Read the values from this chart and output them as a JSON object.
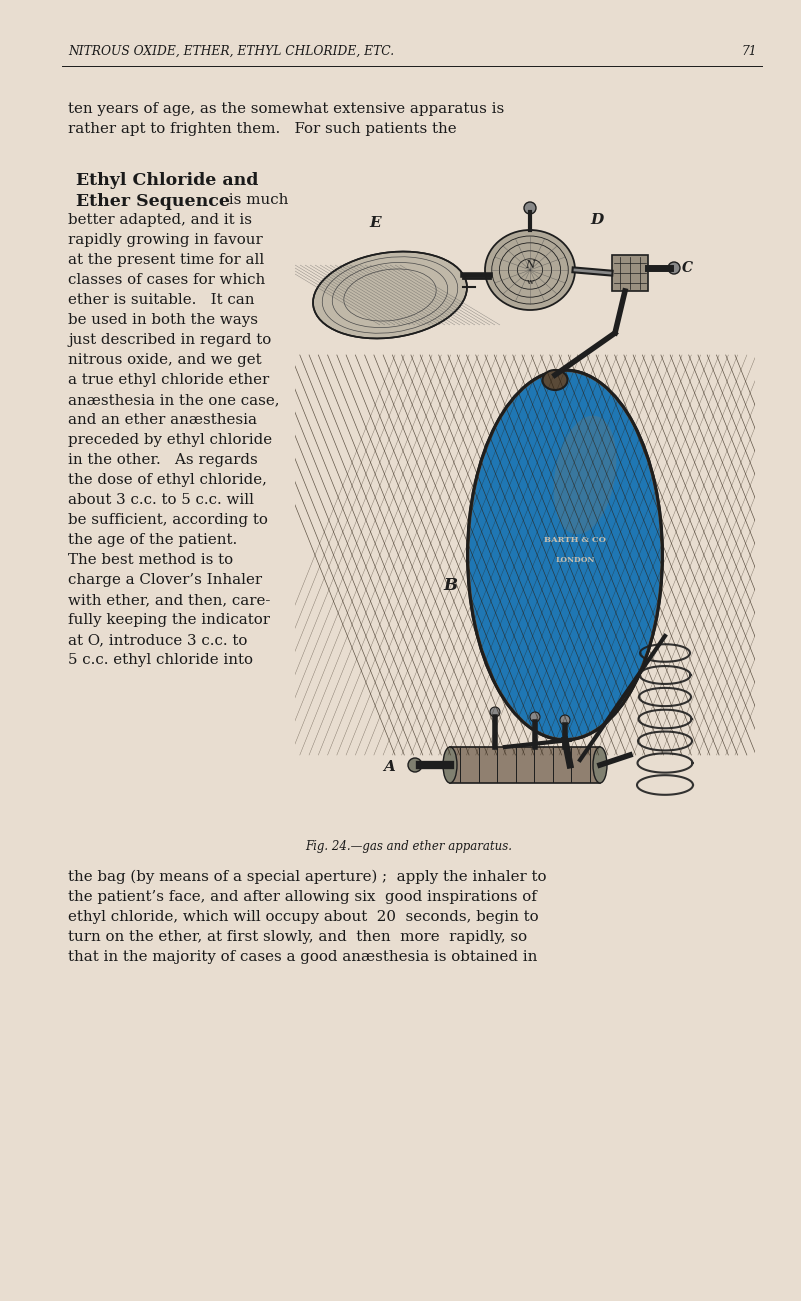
{
  "bg_color": "#e8ddd0",
  "text_color": "#1a1a1a",
  "page_width": 8.01,
  "page_height": 13.01,
  "header_text": "NITROUS OXIDE, ETHER, ETHYL CHLORIDE, ETC.",
  "header_page_num": "71",
  "header_fontsize": 9.0,
  "intro_lines": [
    "ten years of age, as the somewhat extensive apparatus is",
    "rather apt to frighten them.   For such patients the"
  ],
  "left_col_text_lines": [
    "better adapted, and it is",
    "rapidly growing in favour",
    "at the present time for all",
    "classes of cases for which",
    "ether is suitable.   It can",
    "be used in both the ways",
    "just described in regard to",
    "nitrous oxide, and we get",
    "a true ethyl chloride ether",
    "anæsthesia in the one case,",
    "and an ether anæsthesia",
    "preceded by ethyl chloride",
    "in the other.   As regards",
    "the dose of ethyl chloride,",
    "about 3 c.c. to 5 c.c. will",
    "be sufficient, according to",
    "the age of the patient.",
    "The best method is to",
    "charge a Clover’s Inhaler",
    "with ether, and then, care-",
    "fully keeping the indicator",
    "at O, introduce 3 c.c. to",
    "5 c.c. ethyl chloride into"
  ],
  "caption_text": "Fig. 24.—gas and ether apparatus.",
  "bottom_lines": [
    "the bag (by means of a special aperture) ;  apply the inhaler to",
    "the patient’s face, and after allowing six  good inspirations of",
    "ethyl chloride, which will occupy about  20  seconds, begin to",
    "turn on the ether, at first slowly, and  then  more  rapidly, so",
    "that in the majority of cases a good anæsthesia is obtained in"
  ],
  "body_fontsize": 10.8,
  "caption_fontsize": 8.5,
  "bold_fontsize": 12.5,
  "header_italic_fontsize": 8.8
}
